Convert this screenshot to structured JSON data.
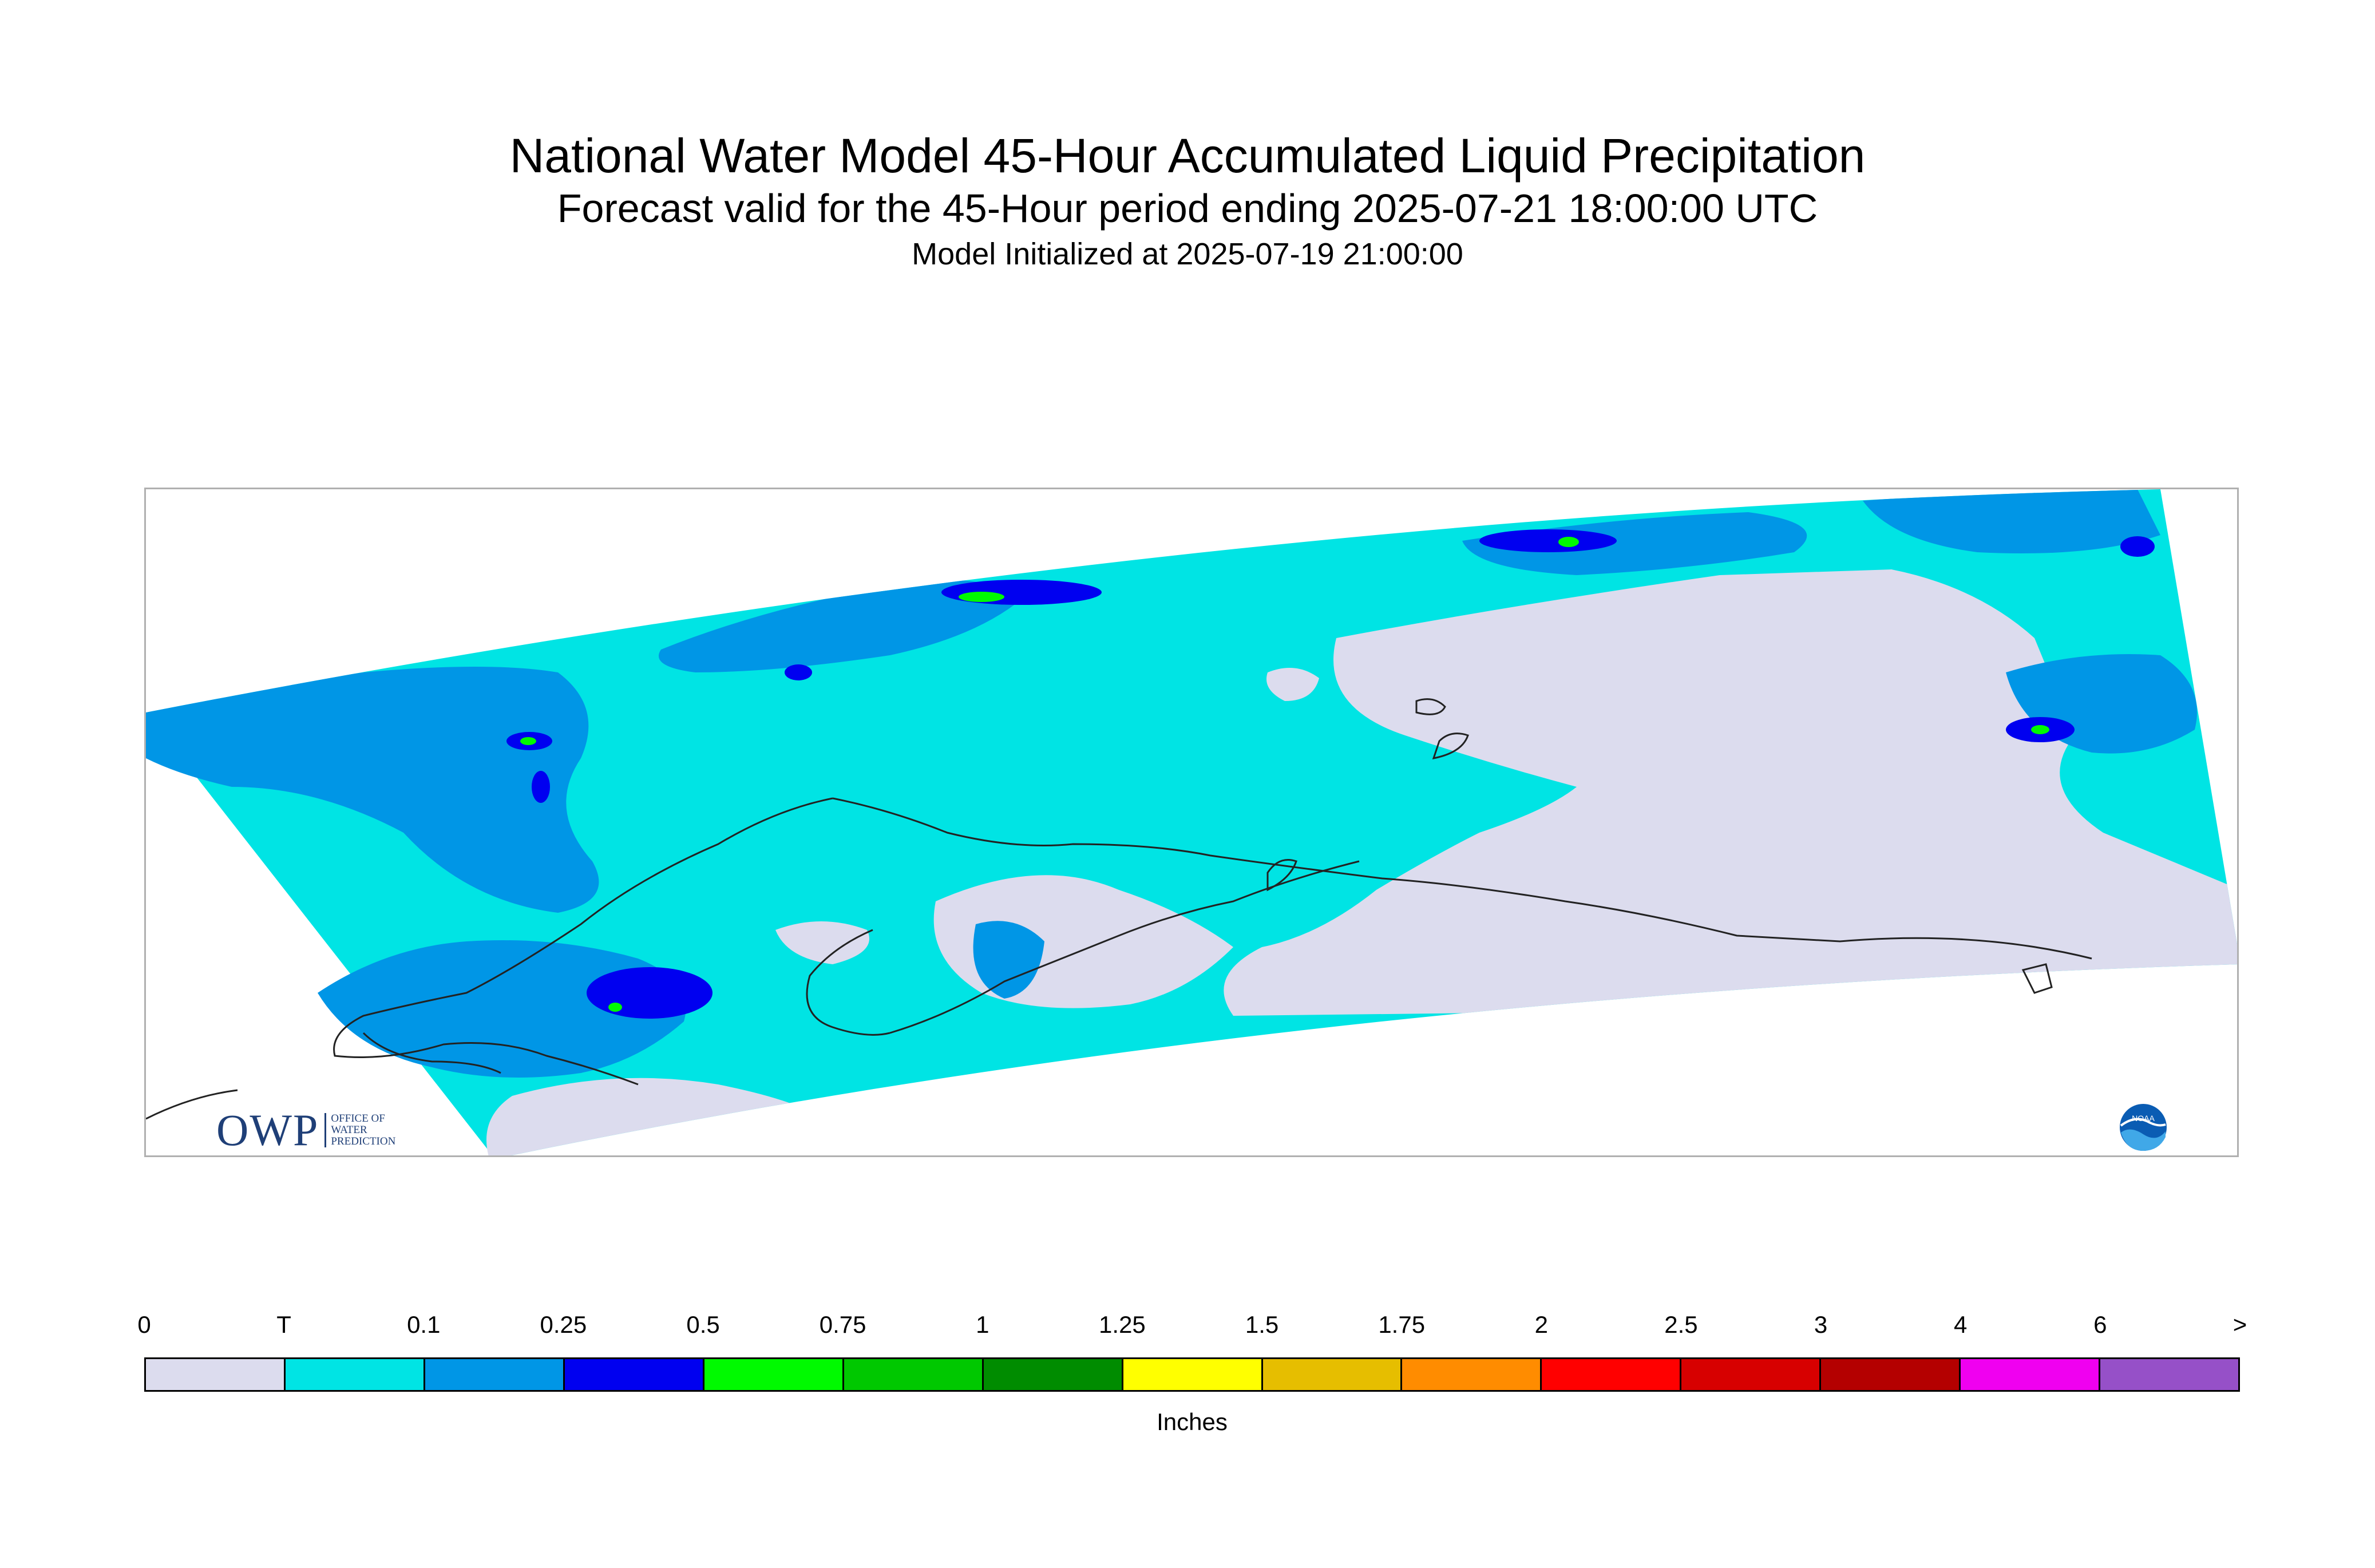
{
  "header": {
    "title": "National Water Model 45-Hour Accumulated Liquid Precipitation",
    "subtitle": "Forecast valid for the 45-Hour period ending 2025-07-21 18:00:00 UTC",
    "init": "Model Initialized at 2025-07-19 21:00:00"
  },
  "legend": {
    "unit": "Inches",
    "labels": [
      "0",
      "T",
      "0.1",
      "0.25",
      "0.5",
      "0.75",
      "1",
      "1.25",
      "1.5",
      "1.75",
      "2",
      "2.5",
      "3",
      "4",
      "6",
      ">"
    ],
    "colors": [
      "#dcdcee",
      "#00e4e4",
      "#0096e6",
      "#0000f0",
      "#00fa00",
      "#00c800",
      "#008c00",
      "#ffff00",
      "#e6be00",
      "#ff8c00",
      "#ff0000",
      "#d70000",
      "#b40000",
      "#f000f0",
      "#9650c8"
    ]
  },
  "logos": {
    "owp_text": "OWP",
    "owp_sub_lines": [
      "OFFICE OF",
      "WATER",
      "PREDICTION"
    ],
    "noaa_text": "NOAA"
  }
}
